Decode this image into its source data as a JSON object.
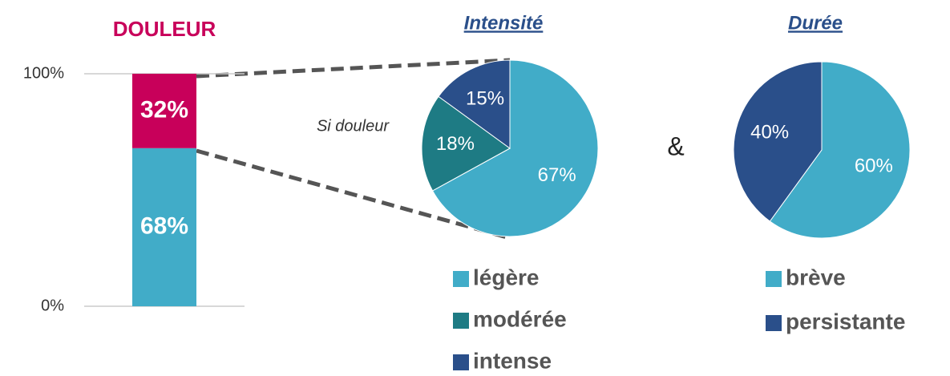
{
  "chart_data": [
    {
      "type": "bar",
      "title": "DOULEUR",
      "title_color": "#c8005a",
      "ylim": [
        0,
        100
      ],
      "yticks": [
        {
          "value": 0,
          "label": "0%"
        },
        {
          "value": 100,
          "label": "100%"
        }
      ],
      "grid": true,
      "series": [
        {
          "color": "#41acc8",
          "values": [
            68
          ],
          "value_labels": [
            "68%"
          ]
        },
        {
          "color": "#c8005a",
          "values": [
            32
          ],
          "value_labels": [
            "32%"
          ]
        }
      ]
    },
    {
      "type": "pie",
      "title": "Intensité",
      "annotation": "Si douleur",
      "categories": [
        "légère",
        "modérée",
        "intense"
      ],
      "values": [
        67,
        18,
        15
      ],
      "value_labels": [
        "67%",
        "18%",
        "15%"
      ],
      "colors": [
        "#41acc8",
        "#1e7b84",
        "#2a4f8a"
      ]
    },
    {
      "type": "pie",
      "title": "Durée",
      "annotation": "&",
      "categories": [
        "brève",
        "persistante"
      ],
      "values": [
        60,
        40
      ],
      "value_labels": [
        "60%",
        "40%"
      ],
      "colors": [
        "#41acc8",
        "#2a4f8a"
      ]
    }
  ]
}
